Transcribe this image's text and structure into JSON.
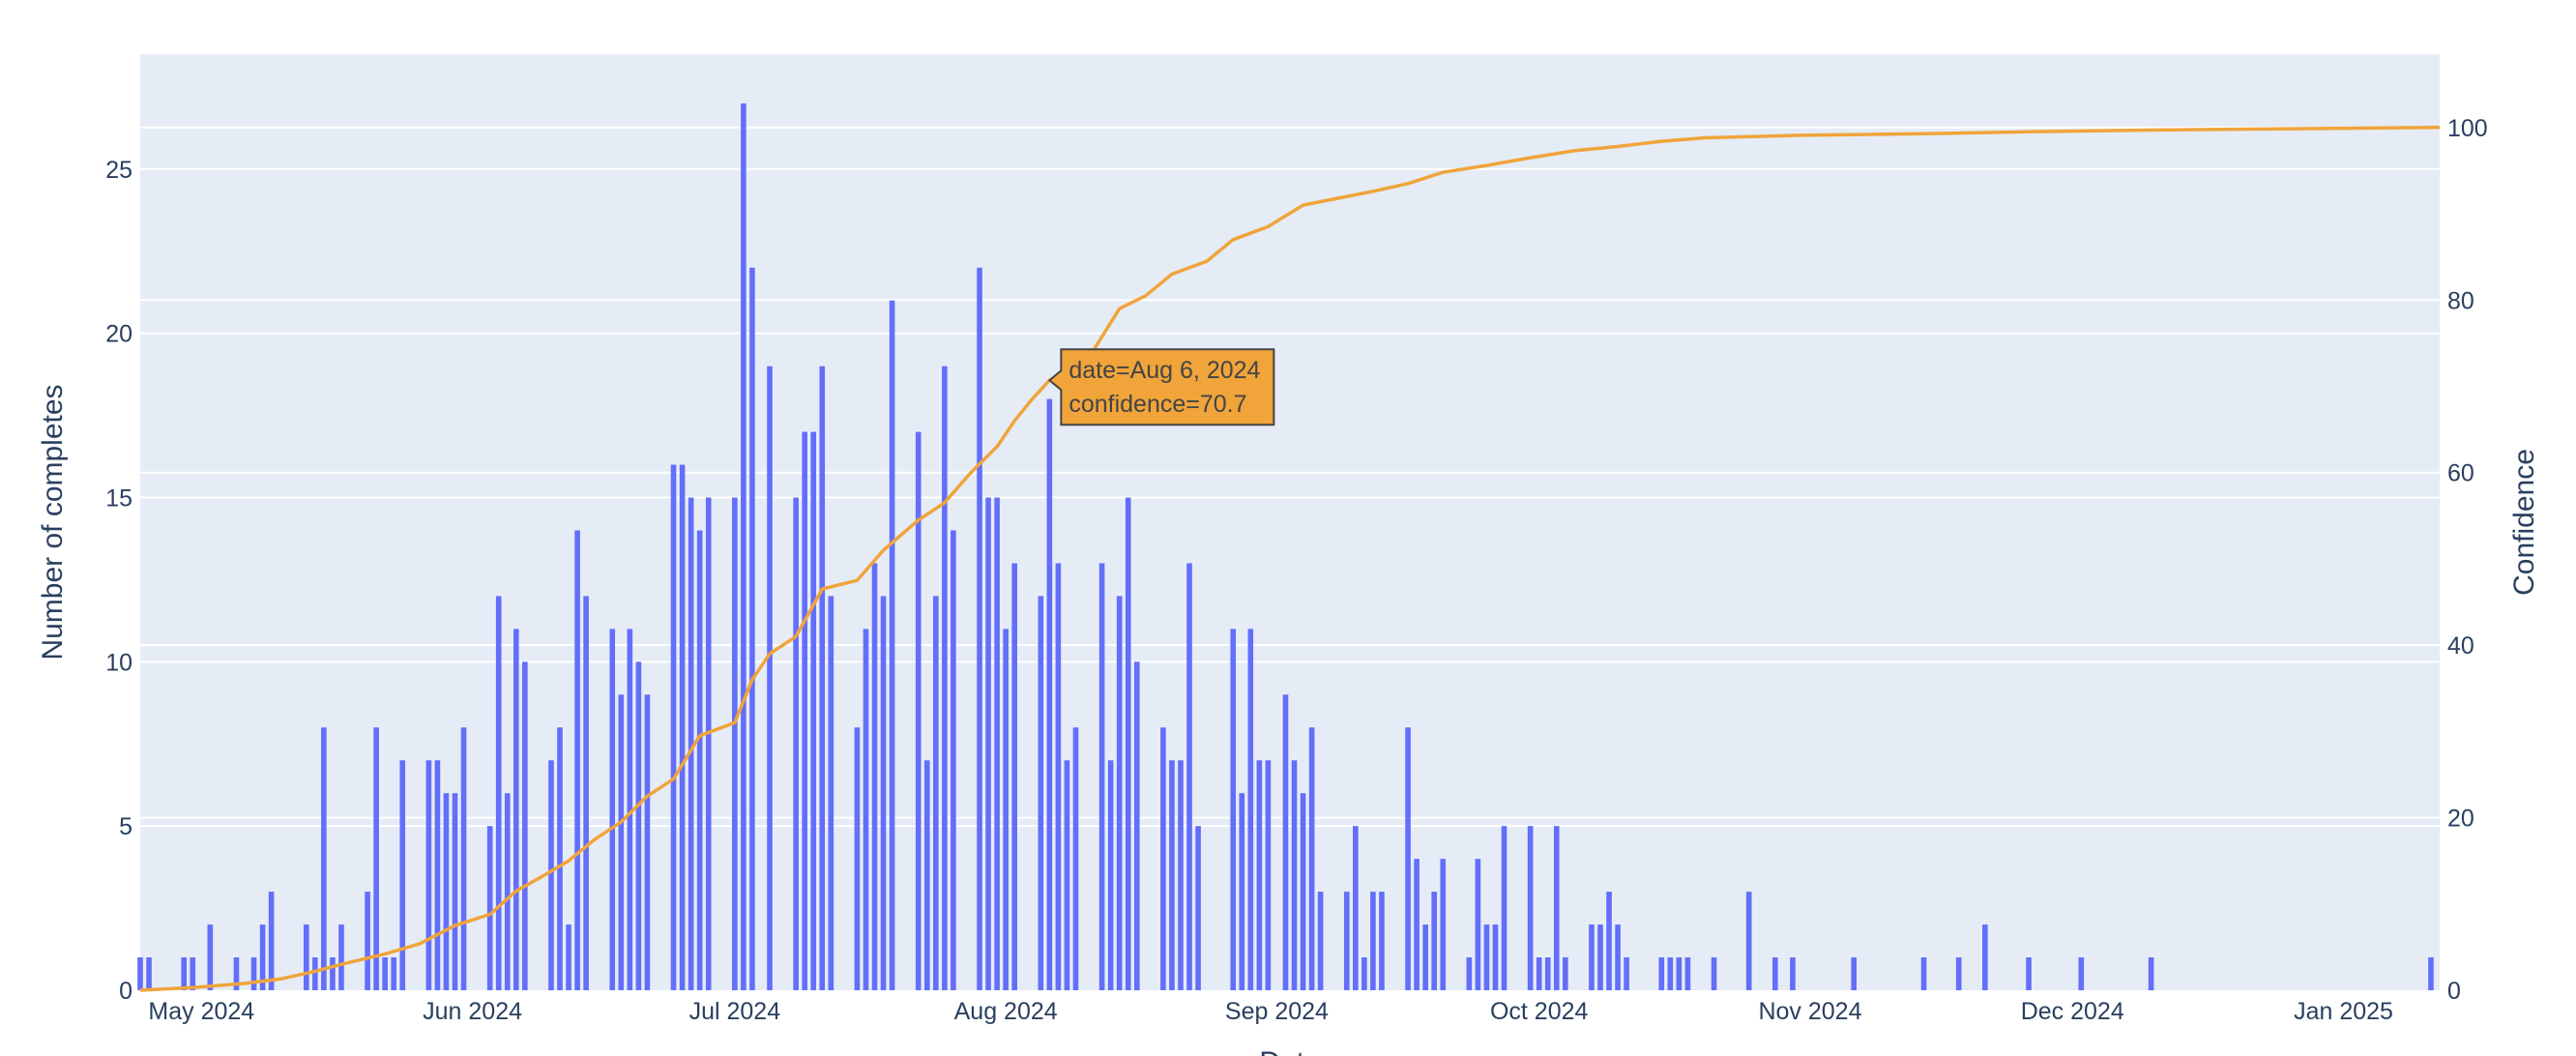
{
  "chart_data": {
    "type": "bar+line",
    "xlabel": "Date",
    "y_left_label": "Number of completes",
    "y_right_label": "Confidence",
    "xlim": [
      "2024-04-24",
      "2025-01-12"
    ],
    "ylim_left": [
      0,
      28.5
    ],
    "ylim_right": [
      0,
      108.5
    ],
    "y_left_ticks": [
      0,
      5,
      10,
      15,
      20,
      25
    ],
    "y_right_ticks": [
      0,
      20,
      40,
      60,
      80,
      100
    ],
    "x_ticks": [
      {
        "date": "2024-05-01",
        "label": "May 2024"
      },
      {
        "date": "2024-06-01",
        "label": "Jun 2024"
      },
      {
        "date": "2024-07-01",
        "label": "Jul 2024"
      },
      {
        "date": "2024-08-01",
        "label": "Aug 2024"
      },
      {
        "date": "2024-09-01",
        "label": "Sep 2024"
      },
      {
        "date": "2024-10-01",
        "label": "Oct 2024"
      },
      {
        "date": "2024-11-01",
        "label": "Nov 2024"
      },
      {
        "date": "2024-12-01",
        "label": "Dec 2024"
      },
      {
        "date": "2025-01-01",
        "label": "Jan 2025"
      }
    ],
    "grid": true,
    "colors": {
      "bars": "#636efa",
      "line": "#f0a43a",
      "plot_bg": "#e5ecf6",
      "grid": "#ffffff",
      "text": "#2a3f5f"
    },
    "bars": [
      [
        "2024-04-24",
        1
      ],
      [
        "2024-04-25",
        1
      ],
      [
        "2024-04-29",
        1
      ],
      [
        "2024-04-30",
        1
      ],
      [
        "2024-05-02",
        2
      ],
      [
        "2024-05-05",
        1
      ],
      [
        "2024-05-07",
        1
      ],
      [
        "2024-05-08",
        2
      ],
      [
        "2024-05-09",
        3
      ],
      [
        "2024-05-13",
        2
      ],
      [
        "2024-05-14",
        1
      ],
      [
        "2024-05-15",
        8
      ],
      [
        "2024-05-16",
        1
      ],
      [
        "2024-05-17",
        2
      ],
      [
        "2024-05-20",
        3
      ],
      [
        "2024-05-21",
        8
      ],
      [
        "2024-05-22",
        1
      ],
      [
        "2024-05-23",
        1
      ],
      [
        "2024-05-24",
        7
      ],
      [
        "2024-05-27",
        7
      ],
      [
        "2024-05-28",
        7
      ],
      [
        "2024-05-29",
        6
      ],
      [
        "2024-05-30",
        6
      ],
      [
        "2024-05-31",
        8
      ],
      [
        "2024-06-03",
        5
      ],
      [
        "2024-06-04",
        12
      ],
      [
        "2024-06-05",
        6
      ],
      [
        "2024-06-06",
        11
      ],
      [
        "2024-06-07",
        10
      ],
      [
        "2024-06-10",
        7
      ],
      [
        "2024-06-11",
        8
      ],
      [
        "2024-06-12",
        2
      ],
      [
        "2024-06-13",
        14
      ],
      [
        "2024-06-14",
        12
      ],
      [
        "2024-06-17",
        11
      ],
      [
        "2024-06-18",
        9
      ],
      [
        "2024-06-19",
        11
      ],
      [
        "2024-06-20",
        10
      ],
      [
        "2024-06-21",
        9
      ],
      [
        "2024-06-24",
        16
      ],
      [
        "2024-06-25",
        16
      ],
      [
        "2024-06-26",
        15
      ],
      [
        "2024-06-27",
        14
      ],
      [
        "2024-06-28",
        15
      ],
      [
        "2024-07-01",
        15
      ],
      [
        "2024-07-02",
        27
      ],
      [
        "2024-07-03",
        22
      ],
      [
        "2024-07-05",
        19
      ],
      [
        "2024-07-08",
        15
      ],
      [
        "2024-07-09",
        17
      ],
      [
        "2024-07-10",
        17
      ],
      [
        "2024-07-11",
        19
      ],
      [
        "2024-07-12",
        12
      ],
      [
        "2024-07-15",
        8
      ],
      [
        "2024-07-16",
        11
      ],
      [
        "2024-07-17",
        13
      ],
      [
        "2024-07-18",
        12
      ],
      [
        "2024-07-19",
        21
      ],
      [
        "2024-07-22",
        17
      ],
      [
        "2024-07-23",
        7
      ],
      [
        "2024-07-24",
        12
      ],
      [
        "2024-07-25",
        19
      ],
      [
        "2024-07-26",
        14
      ],
      [
        "2024-07-29",
        22
      ],
      [
        "2024-07-30",
        15
      ],
      [
        "2024-07-31",
        15
      ],
      [
        "2024-08-01",
        11
      ],
      [
        "2024-08-02",
        13
      ],
      [
        "2024-08-05",
        12
      ],
      [
        "2024-08-06",
        18
      ],
      [
        "2024-08-07",
        13
      ],
      [
        "2024-08-08",
        7
      ],
      [
        "2024-08-09",
        8
      ],
      [
        "2024-08-12",
        13
      ],
      [
        "2024-08-13",
        7
      ],
      [
        "2024-08-14",
        12
      ],
      [
        "2024-08-15",
        15
      ],
      [
        "2024-08-16",
        10
      ],
      [
        "2024-08-19",
        8
      ],
      [
        "2024-08-20",
        7
      ],
      [
        "2024-08-21",
        7
      ],
      [
        "2024-08-22",
        13
      ],
      [
        "2024-08-23",
        5
      ],
      [
        "2024-08-27",
        11
      ],
      [
        "2024-08-28",
        6
      ],
      [
        "2024-08-29",
        11
      ],
      [
        "2024-08-30",
        7
      ],
      [
        "2024-08-31",
        7
      ],
      [
        "2024-09-02",
        9
      ],
      [
        "2024-09-03",
        7
      ],
      [
        "2024-09-04",
        6
      ],
      [
        "2024-09-05",
        8
      ],
      [
        "2024-09-06",
        3
      ],
      [
        "2024-09-09",
        3
      ],
      [
        "2024-09-10",
        5
      ],
      [
        "2024-09-11",
        1
      ],
      [
        "2024-09-12",
        3
      ],
      [
        "2024-09-13",
        3
      ],
      [
        "2024-09-16",
        8
      ],
      [
        "2024-09-17",
        4
      ],
      [
        "2024-09-18",
        2
      ],
      [
        "2024-09-19",
        3
      ],
      [
        "2024-09-20",
        4
      ],
      [
        "2024-09-23",
        1
      ],
      [
        "2024-09-24",
        4
      ],
      [
        "2024-09-25",
        2
      ],
      [
        "2024-09-26",
        2
      ],
      [
        "2024-09-27",
        5
      ],
      [
        "2024-09-30",
        5
      ],
      [
        "2024-10-01",
        1
      ],
      [
        "2024-10-02",
        1
      ],
      [
        "2024-10-03",
        5
      ],
      [
        "2024-10-04",
        1
      ],
      [
        "2024-10-07",
        2
      ],
      [
        "2024-10-08",
        2
      ],
      [
        "2024-10-09",
        3
      ],
      [
        "2024-10-10",
        2
      ],
      [
        "2024-10-11",
        1
      ],
      [
        "2024-10-15",
        1
      ],
      [
        "2024-10-16",
        1
      ],
      [
        "2024-10-17",
        1
      ],
      [
        "2024-10-18",
        1
      ],
      [
        "2024-10-21",
        1
      ],
      [
        "2024-10-25",
        3
      ],
      [
        "2024-10-28",
        1
      ],
      [
        "2024-10-30",
        1
      ],
      [
        "2024-11-06",
        1
      ],
      [
        "2024-11-14",
        1
      ],
      [
        "2024-11-18",
        1
      ],
      [
        "2024-11-21",
        2
      ],
      [
        "2024-11-26",
        1
      ],
      [
        "2024-12-02",
        1
      ],
      [
        "2024-12-10",
        1
      ],
      [
        "2025-01-11",
        1
      ]
    ],
    "line": [
      [
        "2024-04-24",
        0
      ],
      [
        "2024-04-30",
        0.3
      ],
      [
        "2024-05-06",
        0.8
      ],
      [
        "2024-05-10",
        1.3
      ],
      [
        "2024-05-14",
        2.2
      ],
      [
        "2024-05-17",
        3
      ],
      [
        "2024-05-22",
        4.2
      ],
      [
        "2024-05-26",
        5.4
      ],
      [
        "2024-05-30",
        7.5
      ],
      [
        "2024-06-03",
        8.8
      ],
      [
        "2024-06-06",
        11.5
      ],
      [
        "2024-06-09",
        13.2
      ],
      [
        "2024-06-12",
        15
      ],
      [
        "2024-06-15",
        17.5
      ],
      [
        "2024-06-18",
        19.5
      ],
      [
        "2024-06-21",
        22.5
      ],
      [
        "2024-06-24",
        24.5
      ],
      [
        "2024-06-27",
        29.5
      ],
      [
        "2024-07-01",
        31
      ],
      [
        "2024-07-03",
        36
      ],
      [
        "2024-07-05",
        39
      ],
      [
        "2024-07-08",
        41
      ],
      [
        "2024-07-11",
        46.5
      ],
      [
        "2024-07-15",
        47.5
      ],
      [
        "2024-07-18",
        51
      ],
      [
        "2024-07-22",
        54.5
      ],
      [
        "2024-07-25",
        56.5
      ],
      [
        "2024-07-28",
        60
      ],
      [
        "2024-07-31",
        63
      ],
      [
        "2024-08-02",
        66
      ],
      [
        "2024-08-04",
        68.5
      ],
      [
        "2024-08-06",
        70.7
      ],
      [
        "2024-08-10",
        72.5
      ],
      [
        "2024-08-14",
        79
      ],
      [
        "2024-08-17",
        80.5
      ],
      [
        "2024-08-20",
        83
      ],
      [
        "2024-08-24",
        84.5
      ],
      [
        "2024-08-27",
        87
      ],
      [
        "2024-08-31",
        88.5
      ],
      [
        "2024-09-04",
        91
      ],
      [
        "2024-09-08",
        91.8
      ],
      [
        "2024-09-12",
        92.6
      ],
      [
        "2024-09-16",
        93.5
      ],
      [
        "2024-09-20",
        94.8
      ],
      [
        "2024-09-25",
        95.6
      ],
      [
        "2024-09-30",
        96.5
      ],
      [
        "2024-10-05",
        97.3
      ],
      [
        "2024-10-10",
        97.8
      ],
      [
        "2024-10-15",
        98.4
      ],
      [
        "2024-10-20",
        98.8
      ],
      [
        "2024-10-31",
        99.1
      ],
      [
        "2024-11-15",
        99.3
      ],
      [
        "2024-11-26",
        99.5
      ],
      [
        "2024-12-10",
        99.7
      ],
      [
        "2024-12-25",
        99.85
      ],
      [
        "2025-01-12",
        100
      ]
    ]
  },
  "hover": {
    "line1": "date=Aug 6, 2024",
    "line2": "confidence=70.7",
    "date": "2024-08-06",
    "value": 70.7,
    "bg_color": "#f0a43a",
    "border_color": "#444444"
  }
}
